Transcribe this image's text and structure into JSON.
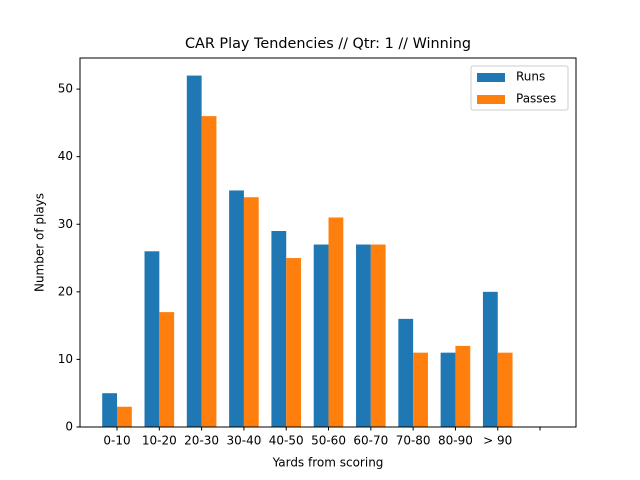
{
  "chart_data": {
    "type": "bar",
    "title": "CAR Play Tendencies // Qtr: 1 // Winning",
    "x_label": "Yards from scoring",
    "y_label": "Number of plays",
    "categories": [
      "0-10",
      "10-20",
      "20-30",
      "30-40",
      "40-50",
      "50-60",
      "60-70",
      "70-80",
      "80-90",
      "> 90",
      null
    ],
    "series": [
      {
        "name": "Runs",
        "color": "#1f77b4",
        "values": [
          5,
          26,
          52,
          35,
          29,
          27,
          27,
          16,
          11,
          20,
          null
        ]
      },
      {
        "name": "Passes",
        "color": "#ff7f0e",
        "values": [
          3,
          17,
          46,
          34,
          25,
          31,
          27,
          11,
          12,
          11,
          null
        ]
      }
    ],
    "ylim": [
      0,
      54.6
    ],
    "yticks": [
      0,
      10,
      20,
      30,
      40,
      50
    ],
    "legend": "upper right"
  }
}
